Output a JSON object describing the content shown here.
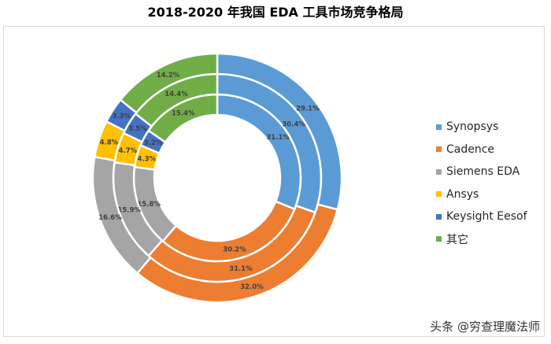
{
  "title": "2018-2020 年我国 EDA 工具市场竞争格局",
  "watermark": "头条 @穷查理魔法师",
  "colors": {
    "Synopsys": "#5b9bd5",
    "Cadence": "#ed7d31",
    "Siemens EDA": "#a5a5a5",
    "Ansys": "#ffc000",
    "Keysight Eesof": "#4472c4",
    "其它": "#70ad47"
  },
  "chart_data": {
    "type": "donut",
    "categories": [
      "Synopsys",
      "Cadence",
      "Siemens EDA",
      "Ansys",
      "Keysight Eesof",
      "其它"
    ],
    "series": [
      {
        "values": [
          31.1,
          30.2,
          15.8,
          4.3,
          3.2,
          15.4
        ],
        "labels": [
          "31.1%",
          "30.2%",
          "15.8%",
          "4.3%",
          "3.2%",
          "15.4%"
        ]
      },
      {
        "values": [
          30.4,
          31.1,
          15.9,
          4.7,
          3.5,
          14.4
        ],
        "labels": [
          "30.4%",
          "31.1%",
          "15.9%",
          "4.7%",
          "3.5%",
          "14.4%"
        ]
      },
      {
        "values": [
          29.1,
          32.0,
          16.6,
          4.8,
          3.3,
          14.2
        ],
        "labels": [
          "29.1%",
          "32.0%",
          "16.6%",
          "4.8%",
          "3.3%",
          "14.2%"
        ]
      }
    ],
    "legend_position": "right"
  }
}
